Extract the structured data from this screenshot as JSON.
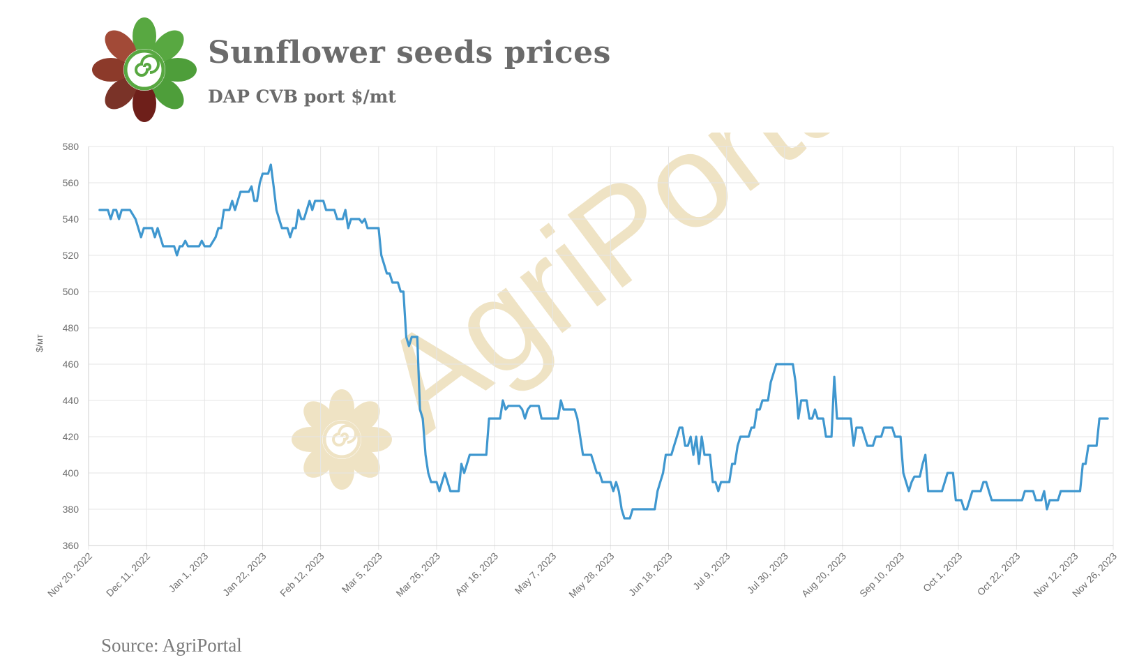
{
  "header": {
    "title": "Sunflower seeds prices",
    "subtitle": "DAP CVB port $/mt",
    "logo_icon": "sunflower-logo-icon"
  },
  "footer": {
    "source": "Source: AgriPortal"
  },
  "watermark": {
    "text": "AgriPortal",
    "color": "#efe3c4"
  },
  "colors": {
    "line": "#3f97cf",
    "grid": "#e6e6e6",
    "axis_text": "#6e6e6e",
    "title": "#6b6b6b"
  },
  "chart_data": {
    "type": "line",
    "title": "Sunflower seeds prices",
    "subtitle": "DAP CVB port $/mt",
    "ylabel": "$/мт",
    "xlabel": "",
    "ylim": [
      360,
      580
    ],
    "yticks": [
      360,
      380,
      400,
      420,
      440,
      460,
      480,
      500,
      520,
      540,
      560,
      580
    ],
    "xlim": [
      "2022-11-20",
      "2023-11-26"
    ],
    "xticks": [
      "Nov 20, 2022",
      "Dec 11, 2022",
      "Jan 1, 2023",
      "Jan 22, 2023",
      "Feb 12, 2023",
      "Mar 5, 2023",
      "Mar 26, 2023",
      "Apr 16, 2023",
      "May 7, 2023",
      "May 28, 2023",
      "Jun 18, 2023",
      "Jul 9, 2023",
      "Jul 30, 2023",
      "Aug 20, 2023",
      "Sep 10, 2023",
      "Oct 1, 2023",
      "Oct 22, 2023",
      "Nov 12, 2023",
      "Nov 26, 2023"
    ],
    "grid": true,
    "series": [
      {
        "values": [
          [
            "2022-11-24",
            545
          ],
          [
            "2022-11-27",
            545
          ],
          [
            "2022-11-28",
            540
          ],
          [
            "2022-11-29",
            545
          ],
          [
            "2022-11-30",
            545
          ],
          [
            "2022-12-01",
            540
          ],
          [
            "2022-12-02",
            545
          ],
          [
            "2022-12-05",
            545
          ],
          [
            "2022-12-07",
            540
          ],
          [
            "2022-12-08",
            535
          ],
          [
            "2022-12-09",
            530
          ],
          [
            "2022-12-10",
            535
          ],
          [
            "2022-12-13",
            535
          ],
          [
            "2022-12-14",
            530
          ],
          [
            "2022-12-15",
            535
          ],
          [
            "2022-12-16",
            530
          ],
          [
            "2022-12-17",
            525
          ],
          [
            "2022-12-20",
            525
          ],
          [
            "2022-12-21",
            525
          ],
          [
            "2022-12-22",
            520
          ],
          [
            "2022-12-23",
            525
          ],
          [
            "2022-12-24",
            525
          ],
          [
            "2022-12-25",
            528
          ],
          [
            "2022-12-26",
            525
          ],
          [
            "2022-12-30",
            525
          ],
          [
            "2022-12-31",
            528
          ],
          [
            "2023-01-01",
            525
          ],
          [
            "2023-01-03",
            525
          ],
          [
            "2023-01-05",
            530
          ],
          [
            "2023-01-06",
            535
          ],
          [
            "2023-01-07",
            535
          ],
          [
            "2023-01-08",
            545
          ],
          [
            "2023-01-09",
            545
          ],
          [
            "2023-01-10",
            545
          ],
          [
            "2023-01-11",
            550
          ],
          [
            "2023-01-12",
            545
          ],
          [
            "2023-01-13",
            550
          ],
          [
            "2023-01-14",
            555
          ],
          [
            "2023-01-17",
            555
          ],
          [
            "2023-01-18",
            558
          ],
          [
            "2023-01-19",
            550
          ],
          [
            "2023-01-20",
            550
          ],
          [
            "2023-01-21",
            560
          ],
          [
            "2023-01-22",
            565
          ],
          [
            "2023-01-24",
            565
          ],
          [
            "2023-01-25",
            570
          ],
          [
            "2023-01-26",
            558
          ],
          [
            "2023-01-27",
            545
          ],
          [
            "2023-01-28",
            540
          ],
          [
            "2023-01-29",
            535
          ],
          [
            "2023-01-31",
            535
          ],
          [
            "2023-02-01",
            530
          ],
          [
            "2023-02-02",
            535
          ],
          [
            "2023-02-03",
            535
          ],
          [
            "2023-02-04",
            545
          ],
          [
            "2023-02-05",
            540
          ],
          [
            "2023-02-06",
            540
          ],
          [
            "2023-02-07",
            545
          ],
          [
            "2023-02-08",
            550
          ],
          [
            "2023-02-09",
            545
          ],
          [
            "2023-02-10",
            550
          ],
          [
            "2023-02-13",
            550
          ],
          [
            "2023-02-14",
            545
          ],
          [
            "2023-02-17",
            545
          ],
          [
            "2023-02-18",
            540
          ],
          [
            "2023-02-20",
            540
          ],
          [
            "2023-02-21",
            545
          ],
          [
            "2023-02-22",
            535
          ],
          [
            "2023-02-23",
            540
          ],
          [
            "2023-02-26",
            540
          ],
          [
            "2023-02-27",
            538
          ],
          [
            "2023-02-28",
            540
          ],
          [
            "2023-03-01",
            535
          ],
          [
            "2023-03-05",
            535
          ],
          [
            "2023-03-06",
            520
          ],
          [
            "2023-03-07",
            515
          ],
          [
            "2023-03-08",
            510
          ],
          [
            "2023-03-09",
            510
          ],
          [
            "2023-03-10",
            505
          ],
          [
            "2023-03-12",
            505
          ],
          [
            "2023-03-13",
            500
          ],
          [
            "2023-03-14",
            500
          ],
          [
            "2023-03-15",
            475
          ],
          [
            "2023-03-16",
            470
          ],
          [
            "2023-03-17",
            475
          ],
          [
            "2023-03-19",
            475
          ],
          [
            "2023-03-20",
            435
          ],
          [
            "2023-03-21",
            430
          ],
          [
            "2023-03-22",
            410
          ],
          [
            "2023-03-23",
            400
          ],
          [
            "2023-03-24",
            395
          ],
          [
            "2023-03-26",
            395
          ],
          [
            "2023-03-27",
            390
          ],
          [
            "2023-03-28",
            395
          ],
          [
            "2023-03-29",
            400
          ],
          [
            "2023-03-30",
            395
          ],
          [
            "2023-03-31",
            390
          ],
          [
            "2023-04-03",
            390
          ],
          [
            "2023-04-04",
            405
          ],
          [
            "2023-04-05",
            400
          ],
          [
            "2023-04-06",
            405
          ],
          [
            "2023-04-07",
            410
          ],
          [
            "2023-04-13",
            410
          ],
          [
            "2023-04-14",
            430
          ],
          [
            "2023-04-18",
            430
          ],
          [
            "2023-04-19",
            440
          ],
          [
            "2023-04-20",
            435
          ],
          [
            "2023-04-21",
            437
          ],
          [
            "2023-04-25",
            437
          ],
          [
            "2023-04-26",
            435
          ],
          [
            "2023-04-27",
            430
          ],
          [
            "2023-04-28",
            435
          ],
          [
            "2023-04-29",
            437
          ],
          [
            "2023-05-02",
            437
          ],
          [
            "2023-05-03",
            430
          ],
          [
            "2023-05-09",
            430
          ],
          [
            "2023-05-10",
            440
          ],
          [
            "2023-05-11",
            435
          ],
          [
            "2023-05-15",
            435
          ],
          [
            "2023-05-16",
            430
          ],
          [
            "2023-05-17",
            420
          ],
          [
            "2023-05-18",
            410
          ],
          [
            "2023-05-21",
            410
          ],
          [
            "2023-05-22",
            405
          ],
          [
            "2023-05-23",
            400
          ],
          [
            "2023-05-24",
            400
          ],
          [
            "2023-05-25",
            395
          ],
          [
            "2023-05-28",
            395
          ],
          [
            "2023-05-29",
            390
          ],
          [
            "2023-05-30",
            395
          ],
          [
            "2023-05-31",
            390
          ],
          [
            "2023-06-01",
            380
          ],
          [
            "2023-06-02",
            375
          ],
          [
            "2023-06-04",
            375
          ],
          [
            "2023-06-05",
            380
          ],
          [
            "2023-06-13",
            380
          ],
          [
            "2023-06-14",
            390
          ],
          [
            "2023-06-15",
            395
          ],
          [
            "2023-06-16",
            400
          ],
          [
            "2023-06-17",
            410
          ],
          [
            "2023-06-19",
            410
          ],
          [
            "2023-06-20",
            415
          ],
          [
            "2023-06-21",
            420
          ],
          [
            "2023-06-22",
            425
          ],
          [
            "2023-06-23",
            425
          ],
          [
            "2023-06-24",
            415
          ],
          [
            "2023-06-25",
            415
          ],
          [
            "2023-06-26",
            420
          ],
          [
            "2023-06-27",
            410
          ],
          [
            "2023-06-28",
            420
          ],
          [
            "2023-06-29",
            405
          ],
          [
            "2023-06-30",
            420
          ],
          [
            "2023-07-01",
            410
          ],
          [
            "2023-07-03",
            410
          ],
          [
            "2023-07-04",
            395
          ],
          [
            "2023-07-05",
            395
          ],
          [
            "2023-07-06",
            390
          ],
          [
            "2023-07-07",
            395
          ],
          [
            "2023-07-10",
            395
          ],
          [
            "2023-07-11",
            405
          ],
          [
            "2023-07-12",
            405
          ],
          [
            "2023-07-13",
            415
          ],
          [
            "2023-07-14",
            420
          ],
          [
            "2023-07-17",
            420
          ],
          [
            "2023-07-18",
            425
          ],
          [
            "2023-07-19",
            425
          ],
          [
            "2023-07-20",
            435
          ],
          [
            "2023-07-21",
            435
          ],
          [
            "2023-07-22",
            440
          ],
          [
            "2023-07-24",
            440
          ],
          [
            "2023-07-25",
            450
          ],
          [
            "2023-07-26",
            455
          ],
          [
            "2023-07-27",
            460
          ],
          [
            "2023-08-02",
            460
          ],
          [
            "2023-08-03",
            450
          ],
          [
            "2023-08-04",
            430
          ],
          [
            "2023-08-05",
            440
          ],
          [
            "2023-08-07",
            440
          ],
          [
            "2023-08-08",
            430
          ],
          [
            "2023-08-09",
            430
          ],
          [
            "2023-08-10",
            435
          ],
          [
            "2023-08-11",
            430
          ],
          [
            "2023-08-13",
            430
          ],
          [
            "2023-08-14",
            420
          ],
          [
            "2023-08-16",
            420
          ],
          [
            "2023-08-17",
            453
          ],
          [
            "2023-08-18",
            430
          ],
          [
            "2023-08-23",
            430
          ],
          [
            "2023-08-24",
            415
          ],
          [
            "2023-08-25",
            425
          ],
          [
            "2023-08-27",
            425
          ],
          [
            "2023-08-28",
            420
          ],
          [
            "2023-08-29",
            415
          ],
          [
            "2023-08-31",
            415
          ],
          [
            "2023-09-01",
            420
          ],
          [
            "2023-09-03",
            420
          ],
          [
            "2023-09-04",
            425
          ],
          [
            "2023-09-07",
            425
          ],
          [
            "2023-09-08",
            420
          ],
          [
            "2023-09-10",
            420
          ],
          [
            "2023-09-11",
            400
          ],
          [
            "2023-09-12",
            395
          ],
          [
            "2023-09-13",
            390
          ],
          [
            "2023-09-14",
            395
          ],
          [
            "2023-09-15",
            398
          ],
          [
            "2023-09-17",
            398
          ],
          [
            "2023-09-18",
            405
          ],
          [
            "2023-09-19",
            410
          ],
          [
            "2023-09-20",
            390
          ],
          [
            "2023-09-25",
            390
          ],
          [
            "2023-09-26",
            395
          ],
          [
            "2023-09-27",
            400
          ],
          [
            "2023-09-29",
            400
          ],
          [
            "2023-09-30",
            385
          ],
          [
            "2023-10-02",
            385
          ],
          [
            "2023-10-03",
            380
          ],
          [
            "2023-10-04",
            380
          ],
          [
            "2023-10-05",
            385
          ],
          [
            "2023-10-06",
            390
          ],
          [
            "2023-10-09",
            390
          ],
          [
            "2023-10-10",
            395
          ],
          [
            "2023-10-11",
            395
          ],
          [
            "2023-10-12",
            390
          ],
          [
            "2023-10-13",
            385
          ],
          [
            "2023-10-24",
            385
          ],
          [
            "2023-10-25",
            390
          ],
          [
            "2023-10-28",
            390
          ],
          [
            "2023-10-29",
            385
          ],
          [
            "2023-10-31",
            385
          ],
          [
            "2023-11-01",
            390
          ],
          [
            "2023-11-02",
            380
          ],
          [
            "2023-11-03",
            385
          ],
          [
            "2023-11-06",
            385
          ],
          [
            "2023-11-07",
            390
          ],
          [
            "2023-11-14",
            390
          ],
          [
            "2023-11-15",
            405
          ],
          [
            "2023-11-16",
            405
          ],
          [
            "2023-11-17",
            415
          ],
          [
            "2023-11-20",
            415
          ],
          [
            "2023-11-21",
            430
          ],
          [
            "2023-11-24",
            430
          ]
        ]
      }
    ]
  }
}
